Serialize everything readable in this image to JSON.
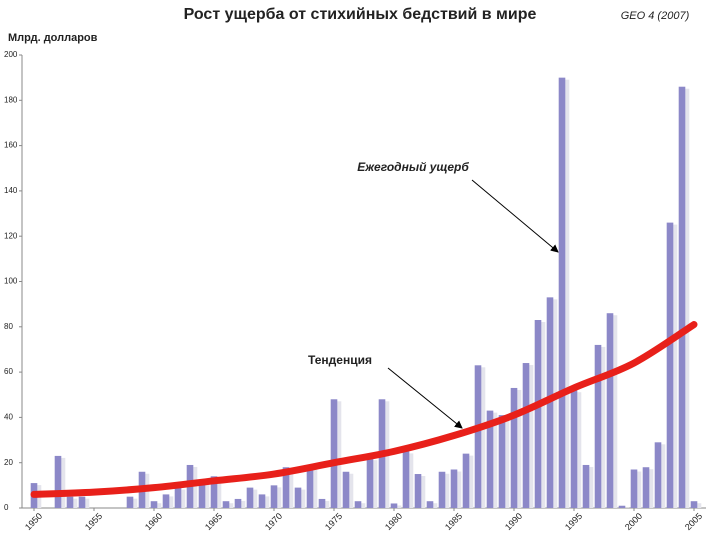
{
  "chart_data": {
    "type": "bar",
    "title": "Рост ущерба от стихийных бедствий в мире",
    "source": "GEO 4 (2007)",
    "y_label": "Млрд. долларов",
    "x": [
      1950,
      1951,
      1952,
      1953,
      1954,
      1955,
      1956,
      1957,
      1958,
      1959,
      1960,
      1961,
      1962,
      1963,
      1964,
      1965,
      1966,
      1967,
      1968,
      1969,
      1970,
      1971,
      1972,
      1973,
      1974,
      1975,
      1976,
      1977,
      1978,
      1979,
      1980,
      1981,
      1982,
      1983,
      1984,
      1985,
      1986,
      1987,
      1988,
      1989,
      1990,
      1991,
      1992,
      1993,
      1994,
      1995,
      1996,
      1997,
      1998,
      1999,
      2000,
      2001,
      2002,
      2003,
      2004,
      2005
    ],
    "series": [
      {
        "name": "Ежегодный ущерб",
        "color": "#8c88c8",
        "values": [
          11,
          0,
          23,
          5,
          5,
          0,
          0,
          0,
          5,
          16,
          3,
          6,
          9,
          19,
          12,
          14,
          3,
          4,
          9,
          6,
          10,
          18,
          9,
          18,
          4,
          48,
          16,
          3,
          22,
          48,
          2,
          25,
          15,
          3,
          16,
          17,
          24,
          63,
          43,
          41,
          53,
          64,
          83,
          93,
          190,
          52,
          19,
          72,
          86,
          1,
          17,
          18,
          29,
          126,
          186,
          3
        ]
      },
      {
        "name": "Тенденция",
        "color": "#e8201a",
        "x": [
          1950,
          1955,
          1960,
          1965,
          1970,
          1975,
          1980,
          1985,
          1990,
          1995,
          2000,
          2005
        ],
        "values": [
          6,
          7,
          9,
          12,
          15,
          20,
          25,
          32,
          41,
          53,
          64,
          81
        ]
      }
    ],
    "xlim": [
      1949,
      2006
    ],
    "xticks": [
      1950,
      1955,
      1960,
      1965,
      1970,
      1975,
      1980,
      1985,
      1990,
      1995,
      2000,
      2005
    ],
    "ylim": [
      0,
      200
    ],
    "yticks": [
      0,
      20,
      40,
      60,
      80,
      100,
      120,
      140,
      160,
      180,
      200
    ]
  }
}
